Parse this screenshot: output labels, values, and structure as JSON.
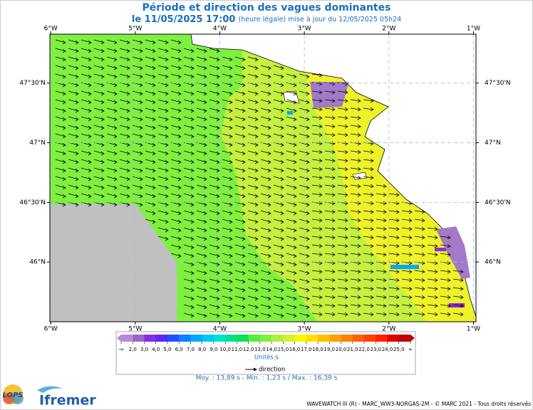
{
  "header": {
    "title": "Période et direction des vagues dominantes",
    "subtitle_date": "le 11/05/2025 17:00",
    "subtitle_note": "(heure légale) mise à jour du 12/05/2025 05h24"
  },
  "map": {
    "lon_range": [
      -6.01,
      -0.97
    ],
    "lat_range": [
      45.5,
      47.91
    ],
    "lon_ticks": [
      {
        "value": -6,
        "label": "6°W"
      },
      {
        "value": -5,
        "label": "5°W"
      },
      {
        "value": -4,
        "label": "4°W"
      },
      {
        "value": -3,
        "label": "3°W"
      },
      {
        "value": -2,
        "label": "2°W"
      },
      {
        "value": -1,
        "label": "1°W"
      }
    ],
    "lat_ticks": [
      {
        "value": 47.5,
        "label": "47°30'N"
      },
      {
        "value": 47,
        "label": "47°N"
      },
      {
        "value": 46.5,
        "label": "46°30'N"
      },
      {
        "value": 46,
        "label": "46°N"
      }
    ]
  },
  "legend": {
    "labels": [
      "-∞",
      "2,0",
      "3,0",
      "4,0",
      "5,0",
      "6,0",
      "7,0",
      "8,0",
      "9,0",
      "10,0",
      "11,0",
      "12,0",
      "13,0",
      "14,0",
      "15,0",
      "16,0",
      "17,0",
      "18,0",
      "19,0",
      "20,0",
      "21,0",
      "22,0",
      "23,0",
      "24,0",
      "25,0",
      "∞"
    ],
    "colors": [
      "#b48cd2",
      "#9966cc",
      "#8a2be2",
      "#5a28ff",
      "#1e50ff",
      "#0a82ff",
      "#00a8ff",
      "#00c8f0",
      "#00e0d0",
      "#00e090",
      "#10e050",
      "#50f040",
      "#80f040",
      "#b0f040",
      "#d8f030",
      "#f8f800",
      "#ffe000",
      "#ffc000",
      "#ffa000",
      "#ff8000",
      "#ff6000",
      "#ff4000",
      "#ff2000",
      "#e00000",
      "#c00000"
    ],
    "unit": "Unités:s",
    "direction": "direction"
  },
  "stats": "Moy. : 13,89 s  -  Min. : 1,23 s / Max. : 16,39 s",
  "footer": "WAVEWATCH III (R) - MARC_WW3-NORGAS-2M - © MARC 2021 - Tous droits réservés",
  "logos": {
    "lops": "LOPS",
    "ifremer": "Ifremer"
  }
}
